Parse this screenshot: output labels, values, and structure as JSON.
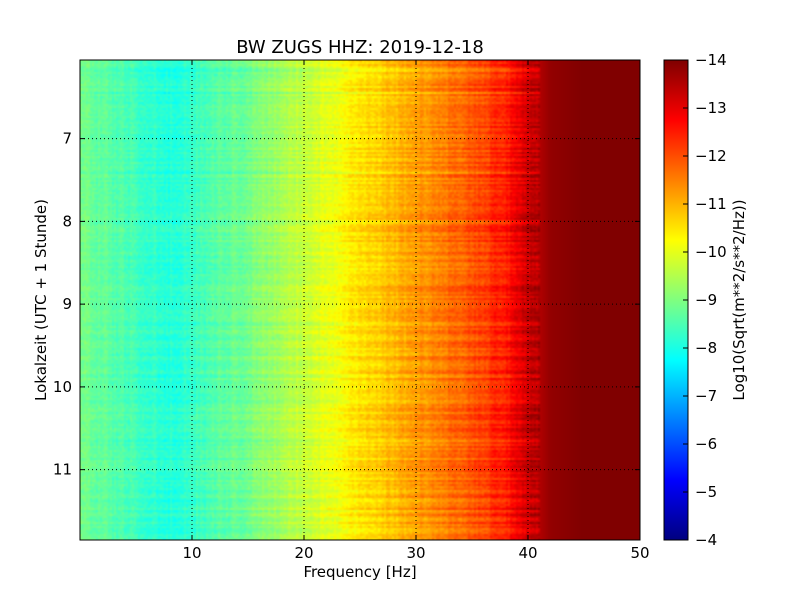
{
  "chart_data": {
    "type": "heatmap",
    "title": "BW ZUGS HHZ: 2019-12-18",
    "xlabel": "Frequency [Hz]",
    "ylabel": "Lokalzeit (UTC + 1 Stunde)",
    "xlim": [
      0,
      50
    ],
    "ylim": [
      11.85,
      6.05
    ],
    "xticks": [
      10,
      20,
      30,
      40,
      50
    ],
    "yticks": [
      7,
      8,
      9,
      10,
      11
    ],
    "grid": true,
    "colormap": "jet",
    "colorbar": {
      "label": "Log10(Sqrt(m**2/s**2/Hz))",
      "range": [
        -14,
        -4
      ],
      "ticks": [
        -4,
        -5,
        -6,
        -7,
        -8,
        -9,
        -10,
        -11,
        -12,
        -13,
        -14
      ]
    },
    "profile": {
      "frequency_hz": [
        0,
        3,
        6,
        8,
        10,
        12,
        15,
        18,
        20,
        22,
        25,
        28,
        30,
        32,
        35,
        38,
        40,
        42,
        45,
        50
      ],
      "log10_amplitude": [
        -8.9,
        -8.6,
        -8.3,
        -8.1,
        -8.3,
        -8.6,
        -8.9,
        -9.4,
        -9.7,
        -10.0,
        -10.5,
        -10.9,
        -11.2,
        -11.5,
        -11.9,
        -12.5,
        -13.2,
        -13.8,
        -14.0,
        -14.0
      ]
    }
  },
  "colors": {
    "background": "#ffffff",
    "axes": "#000000"
  }
}
